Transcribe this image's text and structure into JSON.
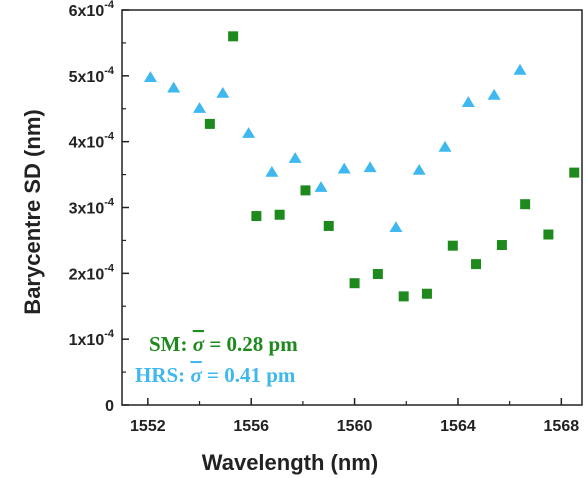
{
  "chart_data": {
    "type": "scatter",
    "xlabel": "Wavelength (nm)",
    "ylabel": "Barycentre SD (nm)",
    "xlim": [
      1551,
      1568.8
    ],
    "ylim": [
      0,
      0.0006
    ],
    "x_ticks": [
      1552,
      1556,
      1560,
      1564,
      1568
    ],
    "y_ticks": [
      {
        "value": 0,
        "mantissa": "0",
        "exponent": ""
      },
      {
        "value": 0.0001,
        "mantissa": "1x10",
        "exponent": "-4"
      },
      {
        "value": 0.0002,
        "mantissa": "2x10",
        "exponent": "-4"
      },
      {
        "value": 0.0003,
        "mantissa": "3x10",
        "exponent": "-4"
      },
      {
        "value": 0.0004,
        "mantissa": "4x10",
        "exponent": "-4"
      },
      {
        "value": 0.0005,
        "mantissa": "5x10",
        "exponent": "-4"
      },
      {
        "value": 0.0006,
        "mantissa": "6x10",
        "exponent": "-4"
      }
    ],
    "grid": false,
    "series": [
      {
        "name": "SM",
        "marker": "square",
        "color": "#1e8a1e",
        "x": [
          1554.4,
          1555.3,
          1556.2,
          1557.1,
          1558.1,
          1559.0,
          1560.0,
          1560.9,
          1561.9,
          1562.8,
          1563.8,
          1564.7,
          1565.7,
          1566.6,
          1567.5,
          1568.5
        ],
        "y": [
          0.000427,
          0.00056,
          0.000287,
          0.000289,
          0.000326,
          0.000272,
          0.000185,
          0.000199,
          0.000165,
          0.000169,
          0.000242,
          0.000214,
          0.000243,
          0.000305,
          0.000259,
          0.000353
        ]
      },
      {
        "name": "HRS",
        "marker": "triangle",
        "color": "#3eb8ee",
        "x": [
          1552.1,
          1553.0,
          1554.0,
          1554.9,
          1555.9,
          1556.8,
          1557.7,
          1558.7,
          1559.6,
          1560.6,
          1561.6,
          1562.5,
          1563.5,
          1564.4,
          1565.4,
          1566.4
        ],
        "y": [
          0.000498,
          0.000482,
          0.000451,
          0.000474,
          0.000413,
          0.000354,
          0.000375,
          0.000331,
          0.000359,
          0.000361,
          0.00027,
          0.000357,
          0.000392,
          0.00046,
          0.000471,
          0.000509
        ]
      }
    ],
    "annotations": [
      {
        "prefix": "SM: ",
        "symbol": "σ",
        "suffix": " = 0.28 pm",
        "color": "#1e8a1e"
      },
      {
        "prefix": "HRS: ",
        "symbol": "σ",
        "suffix": " = 0.41 pm",
        "color": "#3eb8ee"
      }
    ]
  }
}
